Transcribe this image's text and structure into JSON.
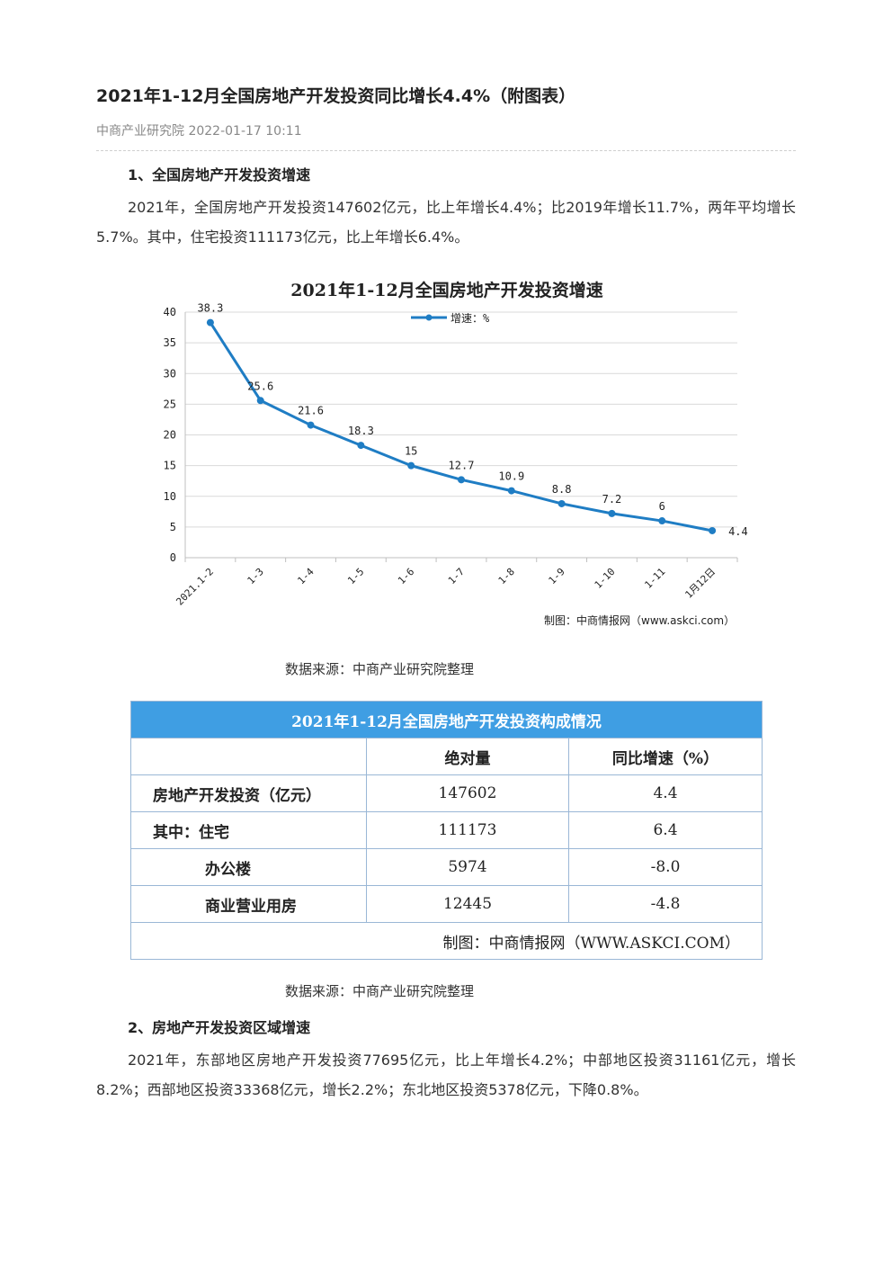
{
  "article": {
    "title": "2021年1-12月全国房地产开发投资同比增长4.4%（附图表）",
    "meta": "中商产业研究院 2022-01-17 10:11"
  },
  "section1": {
    "heading": "1、全国房地产开发投资增速",
    "paragraph": "2021年，全国房地产开发投资147602亿元，比上年增长4.4%；比2019年增长11.7%，两年平均增长5.7%。其中，住宅投资111173亿元，比上年增长6.4%。",
    "chart_caption": "数据来源：中商产业研究院整理",
    "table_caption": "数据来源：中商产业研究院整理"
  },
  "chart_data": {
    "type": "line",
    "title": "2021年1-12月全国房地产开发投资增速",
    "categories": [
      "2021.1-2",
      "1-3",
      "1-4",
      "1-5",
      "1-6",
      "1-7",
      "1-8",
      "1-9",
      "1-10",
      "1-11",
      "1月12日"
    ],
    "series": [
      {
        "name": "增速：%",
        "values": [
          38.3,
          25.6,
          21.6,
          18.3,
          15,
          12.7,
          10.9,
          8.8,
          7.2,
          6,
          4.4
        ]
      }
    ],
    "value_labels": [
      "38.3",
      "25.6",
      "21.6",
      "18.3",
      "15",
      "12.7",
      "10.9",
      "8.8",
      "7.2",
      "6",
      "4.4"
    ],
    "yticks": [
      "0",
      "5",
      "10",
      "15",
      "20",
      "25",
      "30",
      "35",
      "40"
    ],
    "ylim": [
      0,
      40
    ],
    "grid": true,
    "legend": "top-center",
    "credit": "制图：中商情报网（www.askci.com）",
    "line_color": "#1f7dc4"
  },
  "table": {
    "title": "2021年1-12月全国房地产开发投资构成情况",
    "headers": [
      "",
      "绝对量",
      "同比增速（%）"
    ],
    "rows": [
      {
        "label": "房地产开发投资（亿元）",
        "value": "147602",
        "growth": "4.4"
      },
      {
        "label": "其中：住宅",
        "value": "111173",
        "growth": "6.4"
      },
      {
        "label": "办公楼",
        "value": "5974",
        "growth": "-8.0"
      },
      {
        "label": "商业营业用房",
        "value": "12445",
        "growth": "-4.8"
      }
    ],
    "credit": "制图：中商情报网（WWW.ASKCI.COM）",
    "header_color": "#3f9ee3"
  },
  "section2": {
    "heading": "2、房地产开发投资区域增速",
    "paragraph": "2021年，东部地区房地产开发投资77695亿元，比上年增长4.2%；中部地区投资31161亿元，增长8.2%；西部地区投资33368亿元，增长2.2%；东北地区投资5378亿元，下降0.8%。"
  }
}
